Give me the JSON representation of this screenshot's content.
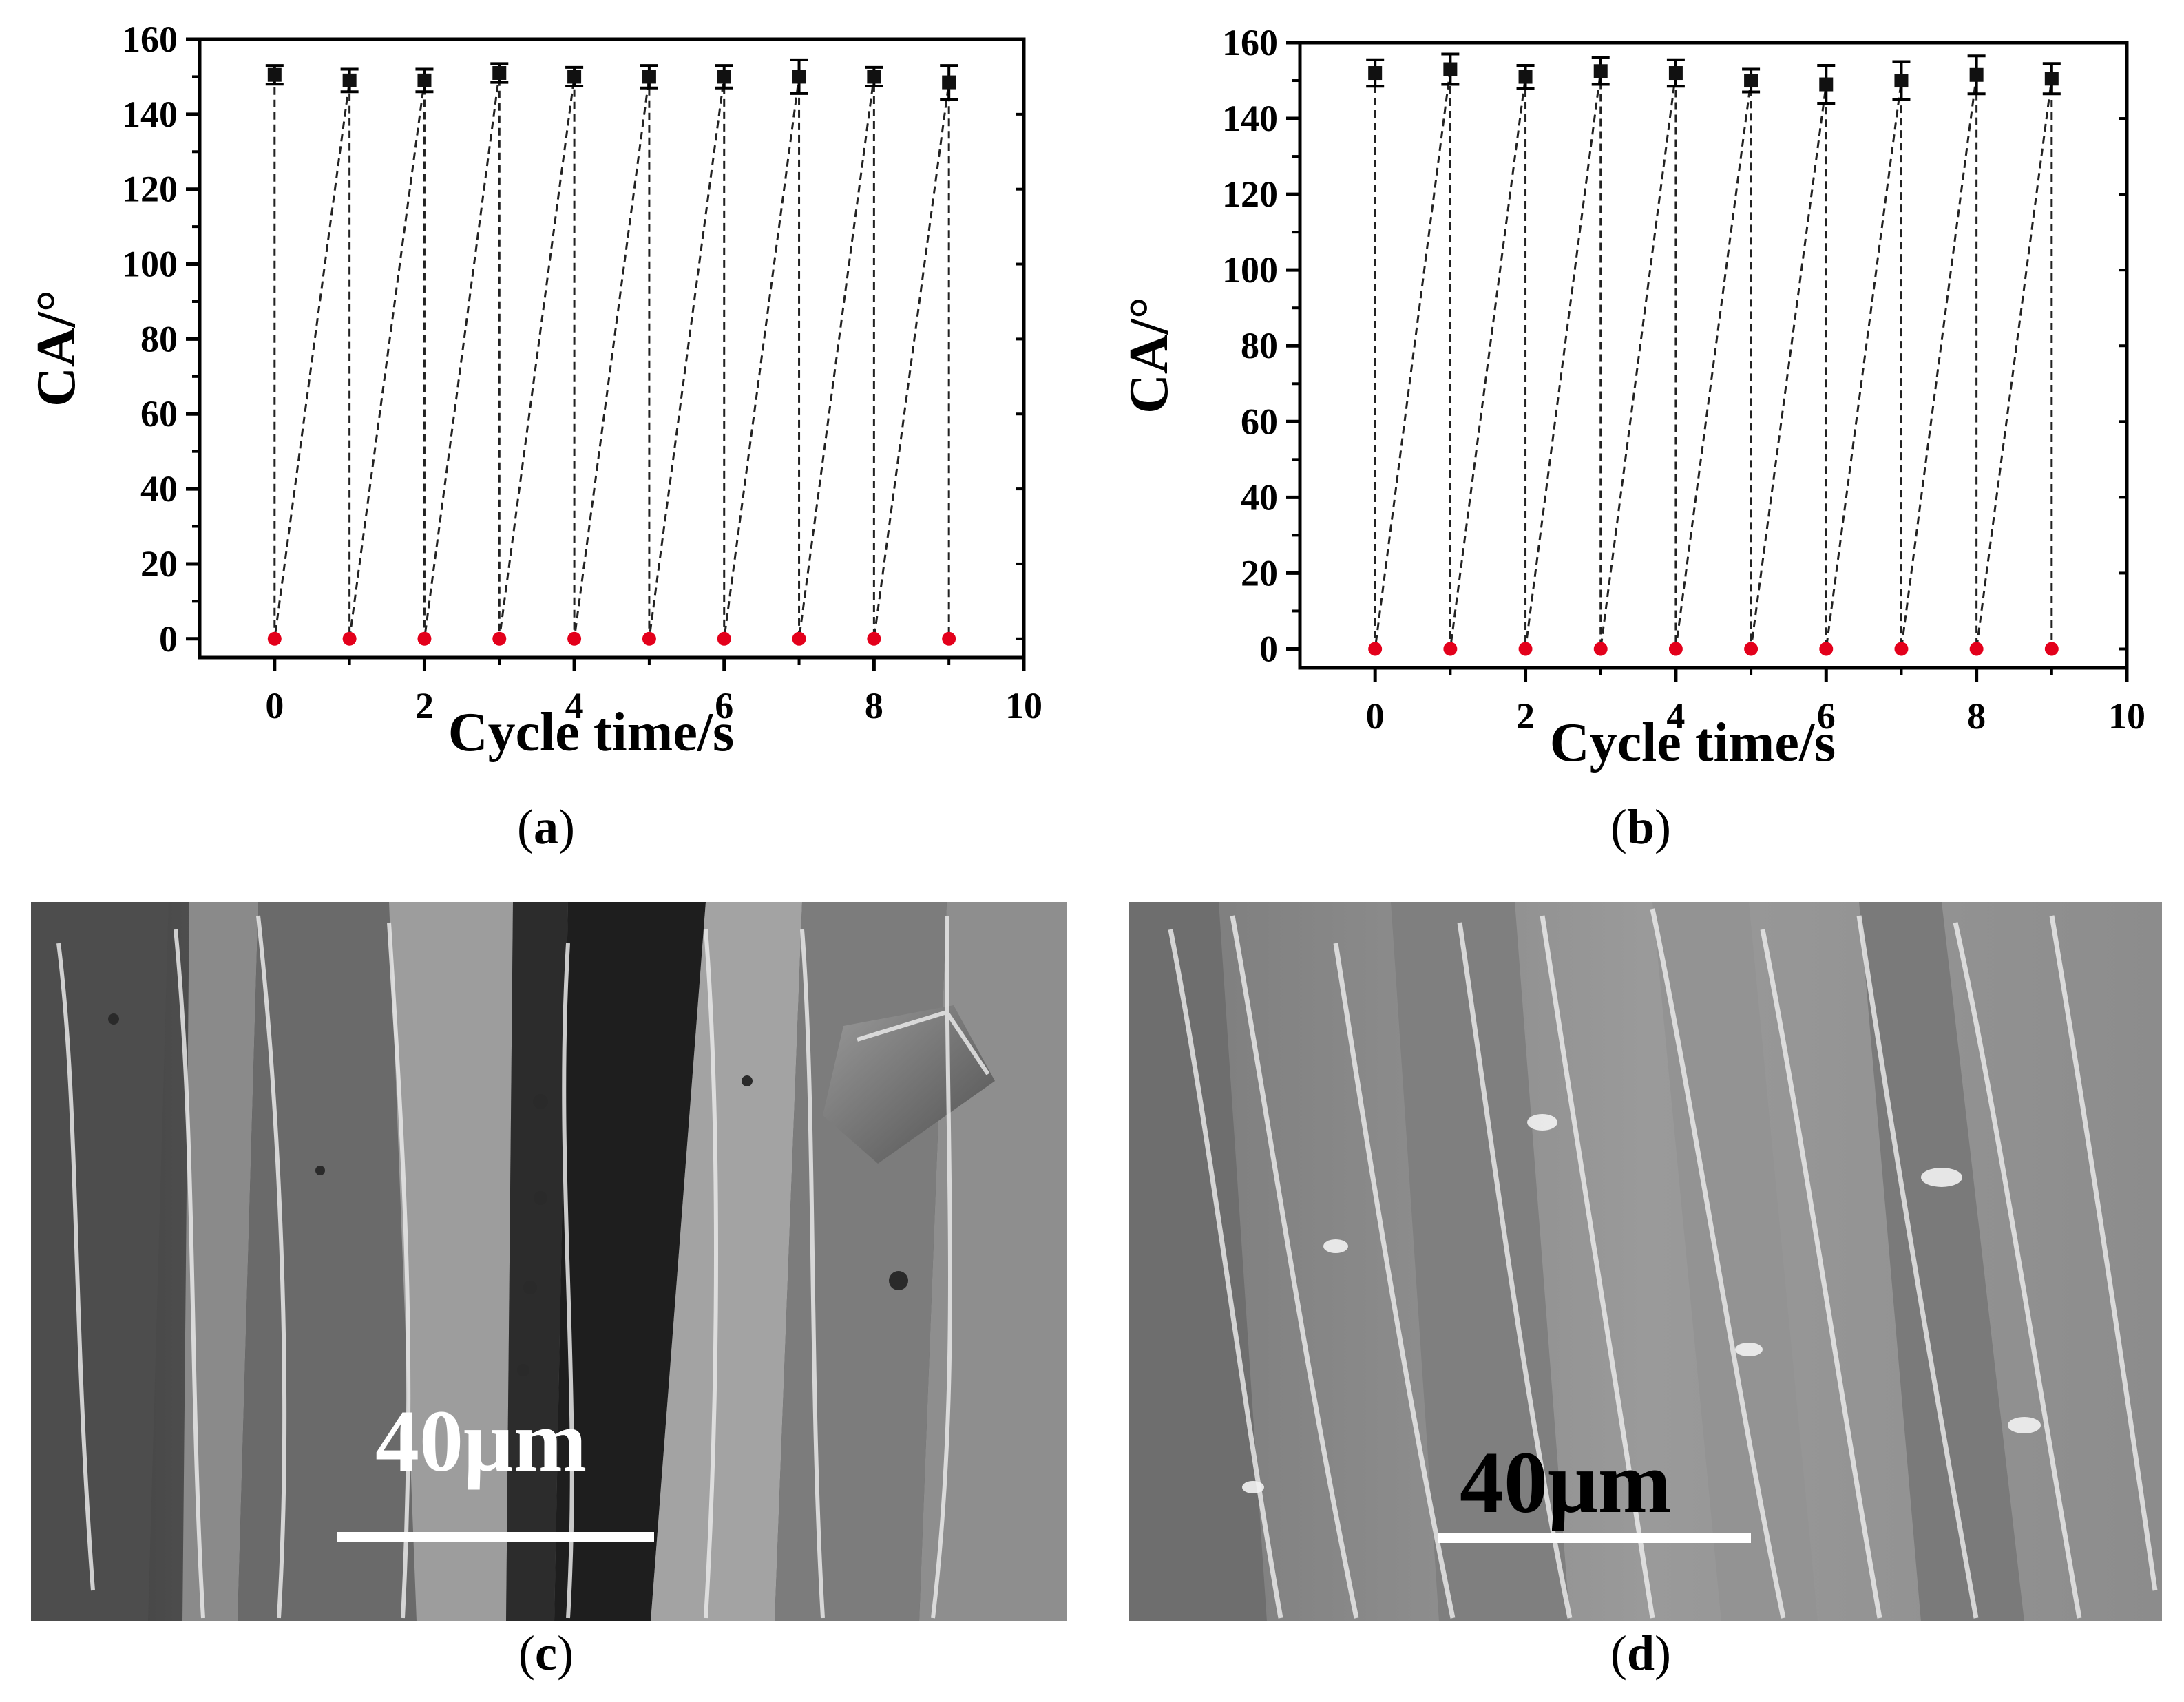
{
  "chart_data": [
    {
      "panel": "a",
      "type": "scatter",
      "xlabel": "Cycle time/s",
      "ylabel": "CA/°",
      "xlim": [
        -1,
        10
      ],
      "ylim": [
        -5,
        160
      ],
      "xticks": [
        0,
        2,
        4,
        6,
        8,
        10
      ],
      "yticks": [
        0,
        20,
        40,
        60,
        80,
        100,
        120,
        140,
        160
      ],
      "grid": false,
      "connector": "dashed zig-zag joining each high point to the next low point",
      "series": [
        {
          "marker": "square",
          "color": "#111111",
          "x": [
            0,
            1,
            2,
            3,
            4,
            5,
            6,
            7,
            8,
            9
          ],
          "y": [
            150.5,
            149,
            149,
            151,
            150,
            150,
            150,
            150,
            150,
            148.5
          ],
          "err": [
            2.5,
            3,
            3,
            2.5,
            2.5,
            3,
            3,
            4.5,
            2.5,
            4.5
          ]
        },
        {
          "marker": "circle",
          "color": "#e3001b",
          "x": [
            0,
            1,
            2,
            3,
            4,
            5,
            6,
            7,
            8,
            9
          ],
          "y": [
            0,
            0,
            0,
            0,
            0,
            0,
            0,
            0,
            0,
            0
          ]
        }
      ]
    },
    {
      "panel": "b",
      "type": "scatter",
      "xlabel": "Cycle time/s",
      "ylabel": "CA/°",
      "xlim": [
        -1,
        10
      ],
      "ylim": [
        -5,
        160
      ],
      "xticks": [
        0,
        2,
        4,
        6,
        8,
        10
      ],
      "yticks": [
        0,
        20,
        40,
        60,
        80,
        100,
        120,
        140,
        160
      ],
      "grid": false,
      "connector": "dashed zig-zag joining each high point to the next low point",
      "series": [
        {
          "marker": "square",
          "color": "#111111",
          "x": [
            0,
            1,
            2,
            3,
            4,
            5,
            6,
            7,
            8,
            9
          ],
          "y": [
            152,
            153,
            151,
            152.5,
            152,
            150,
            149,
            150,
            151.5,
            150.5
          ],
          "err": [
            3.5,
            4,
            3,
            3.5,
            3.5,
            3,
            5,
            5,
            5,
            4
          ]
        },
        {
          "marker": "circle",
          "color": "#e3001b",
          "x": [
            0,
            1,
            2,
            3,
            4,
            5,
            6,
            7,
            8,
            9
          ],
          "y": [
            0,
            0,
            0,
            0,
            0,
            0,
            0,
            0,
            0,
            0
          ]
        }
      ]
    }
  ],
  "captions": {
    "a": "a",
    "b": "b",
    "c": "c",
    "d": "d"
  },
  "micrographs": {
    "c": {
      "scale_label": "40μm",
      "label_color": "#ffffff",
      "bar_color": "#ffffff"
    },
    "d": {
      "scale_label": "40μm",
      "label_color": "#000000",
      "bar_color": "#ffffff"
    }
  }
}
